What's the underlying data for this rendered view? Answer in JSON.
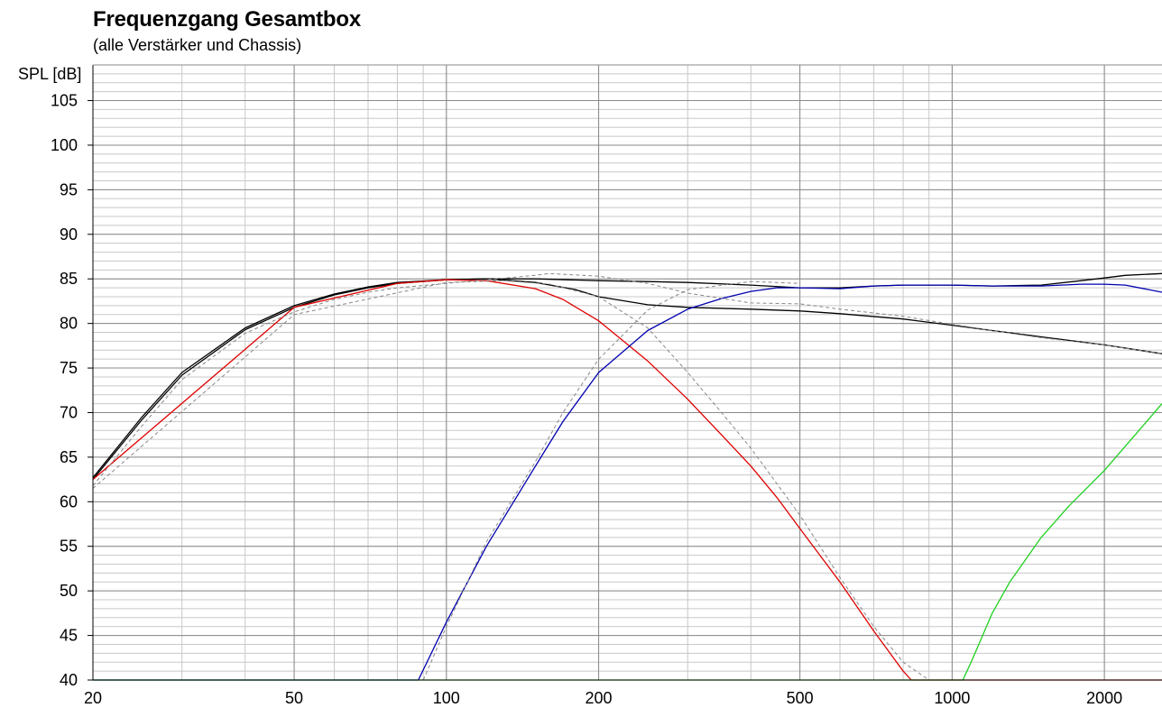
{
  "chart_data": {
    "type": "line",
    "title": "Frequenzgang Gesamtbox",
    "subtitle": "(alle Verstärker und Chassis)",
    "ylabel": "SPL [dB]",
    "xlabel": "",
    "xscale": "log",
    "xlim": [
      20,
      2600
    ],
    "ylim": [
      40,
      109
    ],
    "grid": true,
    "xticks": [
      20,
      50,
      100,
      200,
      500,
      1000,
      2000
    ],
    "xticklabels": [
      "20",
      "50",
      "100",
      "200",
      "500",
      "1000",
      "2000"
    ],
    "yticks": [
      40,
      45,
      50,
      55,
      60,
      65,
      70,
      75,
      80,
      85,
      90,
      95,
      100,
      105
    ],
    "yticklabels": [
      "40",
      "45",
      "50",
      "55",
      "60",
      "65",
      "70",
      "75",
      "80",
      "85",
      "90",
      "95",
      "100",
      "105"
    ],
    "colors": {
      "black": "#000000",
      "red": "#e00000",
      "blue": "#0000b0",
      "green": "#20d020",
      "dashed": "#888888"
    },
    "series": [
      {
        "color": "black",
        "style": "solid",
        "x": [
          20,
          25,
          30,
          40,
          50,
          60,
          70,
          80,
          100,
          120,
          150,
          200,
          250,
          300,
          400,
          500,
          600,
          700,
          800,
          1000,
          1200,
          1500,
          1800,
          2000,
          2200,
          2600
        ],
        "y": [
          62.7,
          69.5,
          74.5,
          79.5,
          82.0,
          83.3,
          84.1,
          84.6,
          84.9,
          85.0,
          85.0,
          84.8,
          84.7,
          84.6,
          84.3,
          84.0,
          84.0,
          84.2,
          84.3,
          84.3,
          84.2,
          84.3,
          84.8,
          85.1,
          85.4,
          85.6
        ]
      },
      {
        "color": "black",
        "style": "solid",
        "x": [
          20,
          25,
          30,
          40,
          50,
          60,
          70,
          80,
          100,
          120,
          150,
          180,
          200,
          250,
          300,
          400,
          500,
          600,
          800,
          1000,
          1200,
          1500,
          2000,
          2600
        ],
        "y": [
          62.5,
          69.2,
          74.2,
          79.3,
          81.8,
          83.2,
          84.0,
          84.5,
          84.9,
          85.0,
          84.6,
          83.8,
          83.0,
          82.1,
          81.8,
          81.6,
          81.4,
          81.1,
          80.5,
          79.8,
          79.2,
          78.5,
          77.6,
          76.6
        ]
      },
      {
        "color": "red",
        "style": "solid",
        "x": [
          20,
          50,
          80,
          100,
          120,
          150,
          170,
          200,
          250,
          300,
          350,
          400,
          450,
          500,
          600,
          700,
          800,
          830,
          1000,
          1500,
          2000,
          2600
        ],
        "y": [
          62.5,
          81.8,
          84.5,
          84.9,
          84.8,
          83.9,
          82.7,
          80.3,
          75.8,
          71.5,
          67.5,
          64.0,
          60.5,
          57.0,
          51.0,
          45.5,
          41.0,
          40.0,
          40.0,
          40.0,
          40.0,
          40.0
        ]
      },
      {
        "color": "blue",
        "style": "solid",
        "x": [
          20,
          50,
          88,
          100,
          120,
          150,
          170,
          200,
          250,
          300,
          350,
          400,
          450,
          500,
          600,
          700,
          800,
          1000,
          1200,
          1500,
          1800,
          2000,
          2200,
          2600
        ],
        "y": [
          40.0,
          40.0,
          40.0,
          46.5,
          55.0,
          64.0,
          69.0,
          74.5,
          79.2,
          81.6,
          82.8,
          83.6,
          84.0,
          84.0,
          83.9,
          84.2,
          84.3,
          84.3,
          84.2,
          84.2,
          84.4,
          84.4,
          84.3,
          83.5
        ]
      },
      {
        "color": "green",
        "style": "solid",
        "x": [
          20,
          200,
          500,
          1000,
          1050,
          1100,
          1200,
          1300,
          1500,
          1700,
          2000,
          2300,
          2600
        ],
        "y": [
          40.0,
          40.0,
          40.0,
          40.0,
          40.0,
          42.5,
          47.5,
          51.0,
          56.0,
          59.5,
          63.5,
          67.5,
          71.0
        ]
      },
      {
        "color": "dashed",
        "style": "dashed",
        "x": [
          20,
          25,
          30,
          40,
          50,
          60,
          70,
          80,
          100,
          120,
          150,
          160,
          200,
          250,
          300,
          400,
          500,
          600,
          800,
          1000,
          1200,
          1500,
          2000,
          2600
        ],
        "y": [
          61.8,
          68.5,
          73.7,
          78.9,
          81.3,
          82.7,
          83.5,
          84.0,
          84.5,
          84.9,
          85.4,
          85.6,
          85.3,
          84.5,
          83.4,
          82.3,
          82.2,
          81.6,
          80.8,
          79.9,
          79.2,
          78.4,
          77.6,
          76.6
        ]
      },
      {
        "color": "dashed",
        "style": "dashed",
        "x": [
          20,
          50,
          100,
          130,
          160,
          200,
          250,
          300,
          350,
          400,
          500,
          600,
          700,
          800,
          900
        ],
        "y": [
          61.5,
          81.0,
          84.6,
          84.8,
          84.4,
          83.0,
          79.5,
          74.5,
          70.0,
          66.0,
          58.5,
          51.5,
          46.0,
          42.0,
          40.0
        ]
      },
      {
        "color": "dashed",
        "style": "dashed",
        "x": [
          90,
          100,
          120,
          150,
          170,
          200,
          250,
          300,
          400,
          500
        ],
        "y": [
          40.0,
          46.0,
          55.5,
          64.5,
          70.0,
          76.0,
          81.5,
          83.8,
          84.7,
          84.5
        ]
      }
    ]
  }
}
